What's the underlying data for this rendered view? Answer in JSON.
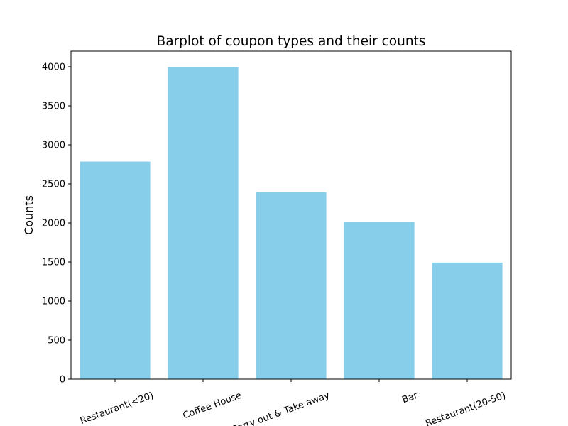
{
  "chart_data": {
    "type": "bar",
    "title": "Barplot of coupon types and their counts",
    "xlabel": "",
    "ylabel": "Counts",
    "categories": [
      "Restaurant(<20)",
      "Coffee House",
      "Carry out & Take away",
      "Bar",
      "Restaurant(20-50)"
    ],
    "values": [
      2786,
      3996,
      2393,
      2017,
      1492
    ],
    "ylim": [
      0,
      4200
    ],
    "yticks": [
      0,
      500,
      1000,
      1500,
      2000,
      2500,
      3000,
      3500,
      4000
    ],
    "xtick_rotation_deg": 20,
    "bar_color": "#87ceeb",
    "grid": false,
    "legend": "none"
  }
}
